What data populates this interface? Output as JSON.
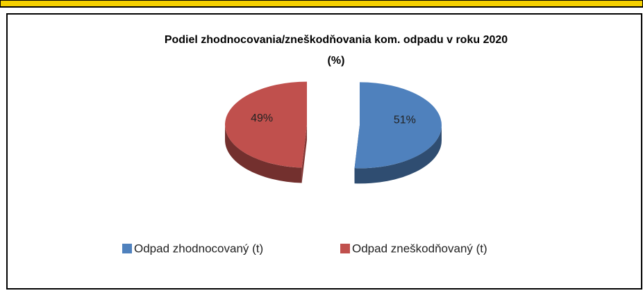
{
  "chart_data": {
    "type": "pie",
    "title": [
      "Podiel zhodnocovania/zneškodňovania kom. odpadu v roku 2020",
      "(%)"
    ],
    "categories": [
      "Odpad zhodnocovaný (t)",
      "Odpad zneškodňovaný (t)"
    ],
    "values": [
      51,
      49
    ],
    "value_labels": [
      "51%",
      "49%"
    ],
    "colors": [
      "#4f81bd",
      "#c0504d"
    ],
    "legend": "bottom"
  }
}
